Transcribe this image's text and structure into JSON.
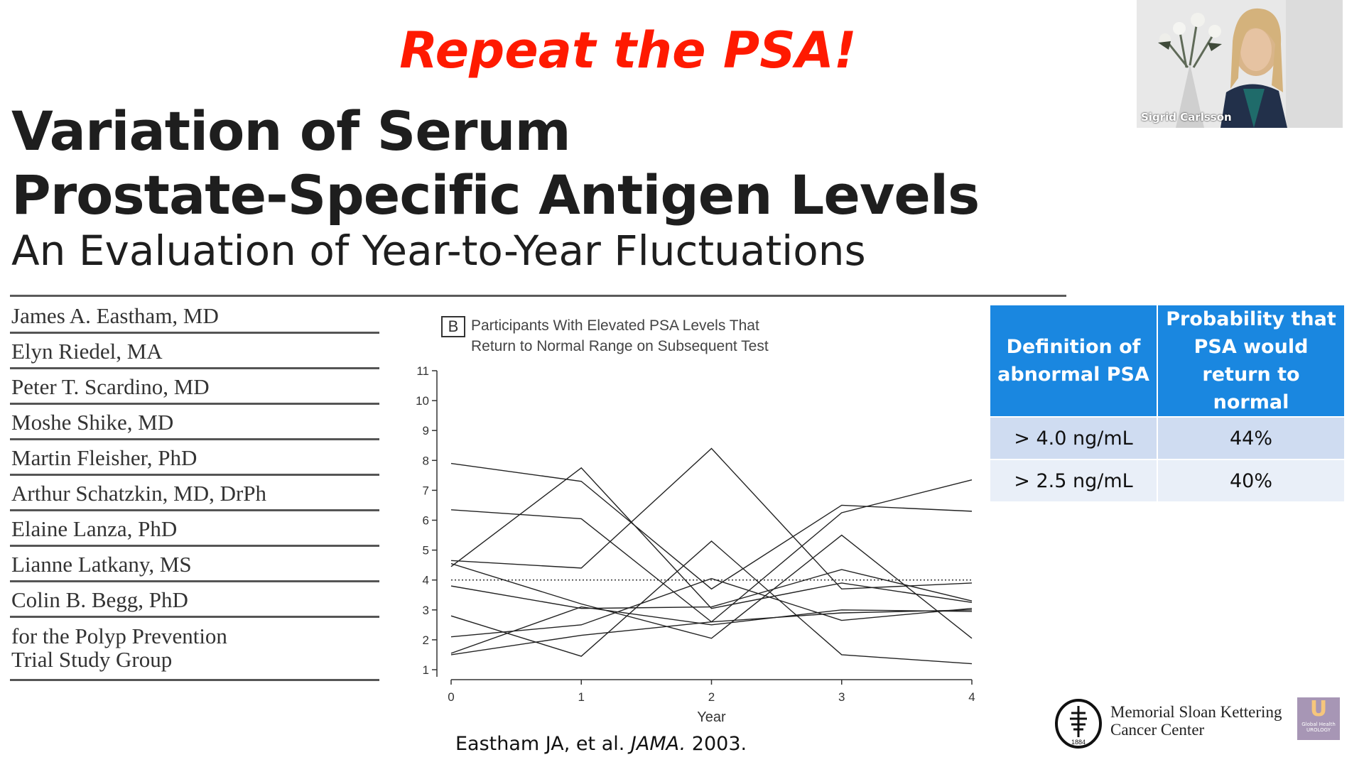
{
  "slide": {
    "headline": "Repeat the PSA!",
    "title_lines": [
      "Variation of Serum",
      "Prostate-Specific Antigen Levels"
    ],
    "subtitle": "An Evaluation of Year-to-Year Fluctuations",
    "authors": [
      "James A. Eastham, MD",
      "Elyn Riedel, MA",
      "Peter T. Scardino, MD",
      "Moshe Shike, MD",
      "Martin Fleisher, PhD",
      "Arthur Schatzkin, MD, DrPh",
      "Elaine Lanza, PhD",
      "Lianne Latkany, MS",
      "Colin B. Begg, PhD"
    ],
    "group_line1": "for the Polyp Prevention",
    "group_line2": "Trial Study Group",
    "panel_letter": "B",
    "chart_title_line1": "Participants With Elevated PSA Levels That",
    "chart_title_line2": "Return to Normal Range on Subsequent Test",
    "table": {
      "headers": [
        "Definition of abnormal PSA",
        "Probability that PSA would return to normal"
      ],
      "rows": [
        [
          "> 4.0 ng/mL",
          "44%"
        ],
        [
          "> 2.5 ng/mL",
          "40%"
        ]
      ],
      "header_color": "#1a87e0"
    },
    "citation_prefix": "Eastham JA, et al. ",
    "citation_journal": "JAMA.",
    "citation_suffix": " 2003.",
    "headline_color": "#ff1a00"
  },
  "webcam": {
    "speaker_name": "Sigrid Carlsson"
  },
  "logo": {
    "line1": "Memorial Sloan Kettering",
    "line2": "Cancer Center",
    "seal_year": "1884",
    "badge_letter": "U",
    "badge_label_line1": "Global Health",
    "badge_label_line2": "UROLOGY"
  },
  "chart_data": {
    "type": "line",
    "title": "Participants With Elevated PSA Levels That Return to Normal Range on Subsequent Test",
    "xlabel": "Year",
    "ylabel": "",
    "x": [
      0,
      1,
      2,
      3,
      4
    ],
    "xlim": [
      0,
      4
    ],
    "ylim": [
      1,
      11
    ],
    "yticks": [
      1,
      2,
      3,
      4,
      5,
      6,
      7,
      8,
      9,
      10,
      11
    ],
    "reference_line": 4,
    "series": [
      {
        "values": [
          7.9,
          7.3,
          3.7,
          6.5,
          6.3
        ]
      },
      {
        "values": [
          6.35,
          6.05,
          2.6,
          6.25,
          7.35
        ]
      },
      {
        "values": [
          4.65,
          4.4,
          8.4,
          3.7,
          3.9
        ]
      },
      {
        "values": [
          4.55,
          3.2,
          2.05,
          5.5,
          2.05
        ]
      },
      {
        "values": [
          4.45,
          7.75,
          3.05,
          3.9,
          3.25
        ]
      },
      {
        "values": [
          3.8,
          3.05,
          3.1,
          4.35,
          3.3
        ]
      },
      {
        "values": [
          2.8,
          1.45,
          5.3,
          1.5,
          1.2
        ]
      },
      {
        "values": [
          2.1,
          2.5,
          4.05,
          2.65,
          3.05
        ]
      },
      {
        "values": [
          1.5,
          2.15,
          2.6,
          2.9,
          3.0
        ]
      },
      {
        "values": [
          1.55,
          3.1,
          2.5,
          3.0,
          2.95
        ]
      }
    ]
  }
}
